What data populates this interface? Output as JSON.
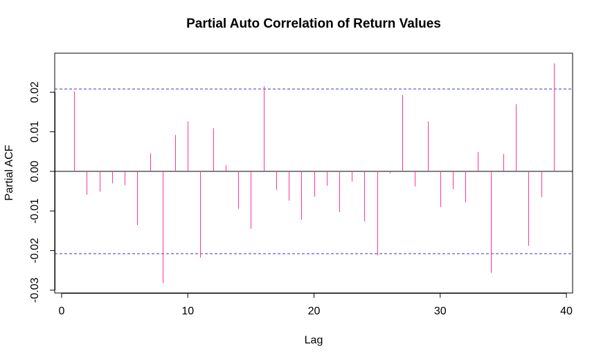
{
  "chart_data": {
    "type": "bar",
    "title": "Partial Auto Correlation of Return Values",
    "xlabel": "Lag",
    "ylabel": "Partial ACF",
    "xlim": [
      0,
      40
    ],
    "ylim": [
      -0.03,
      0.028
    ],
    "x_ticks": [
      0,
      10,
      20,
      30,
      40
    ],
    "x_tick_labels": [
      "0",
      "10",
      "20",
      "30",
      "40"
    ],
    "y_ticks": [
      -0.03,
      -0.02,
      -0.01,
      0.0,
      0.01,
      0.02
    ],
    "y_tick_labels": [
      "-0.03",
      "-0.02",
      "-0.01",
      "0.00",
      "0.01",
      "0.02"
    ],
    "confidence_bound": 0.0208,
    "grid": false,
    "colors": {
      "bars": "#ff3399",
      "bounds": "#3333cc",
      "zero_line": "#000000"
    },
    "x": [
      1,
      2,
      3,
      4,
      5,
      6,
      7,
      8,
      9,
      10,
      11,
      12,
      13,
      14,
      15,
      16,
      17,
      18,
      19,
      20,
      21,
      22,
      23,
      24,
      25,
      26,
      27,
      28,
      29,
      30,
      31,
      32,
      33,
      34,
      35,
      36,
      37,
      38,
      39
    ],
    "values": [
      0.0202,
      -0.0059,
      -0.0051,
      -0.003,
      -0.0035,
      -0.0136,
      0.0046,
      -0.0282,
      0.0092,
      0.0126,
      -0.0218,
      0.0109,
      0.0015,
      -0.0095,
      -0.0145,
      0.0215,
      -0.0047,
      -0.0074,
      -0.0122,
      -0.0064,
      -0.0036,
      -0.0103,
      -0.0026,
      -0.0126,
      -0.0212,
      -0.0005,
      0.0193,
      -0.0038,
      0.0126,
      -0.009,
      -0.0045,
      -0.0078,
      0.0049,
      -0.0256,
      0.0044,
      0.017,
      -0.0188,
      -0.0065,
      0.0273
    ]
  }
}
